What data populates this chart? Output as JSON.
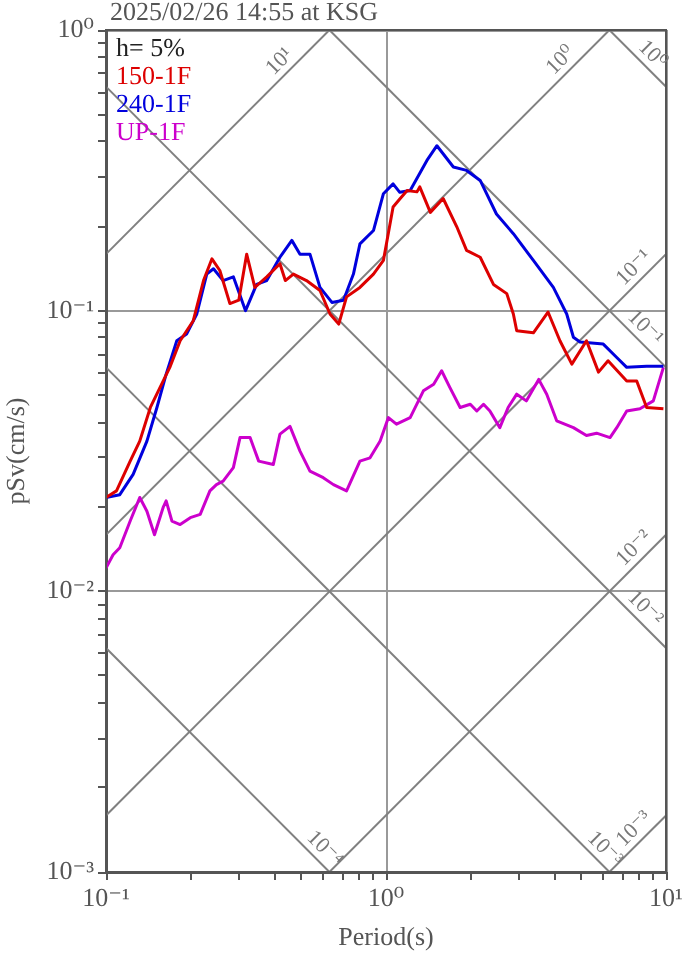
{
  "chart_data": {
    "type": "line",
    "title": "2025/02/26 14:55 at KSG",
    "xlabel": "Period(s)",
    "ylabel": "pSv(cm/s)",
    "legend_title": "h= 5%",
    "legend": "top left",
    "log": "xy",
    "grid": true,
    "xlim": [
      0.1,
      10
    ],
    "ylim": [
      0.001,
      1
    ],
    "xticks": [
      {
        "value": 0.1,
        "label": "10⁻¹"
      },
      {
        "value": 0.2,
        "label": null
      },
      {
        "value": 0.3,
        "label": null
      },
      {
        "value": 0.4,
        "label": null
      },
      {
        "value": 0.5,
        "label": null
      },
      {
        "value": 0.6,
        "label": null
      },
      {
        "value": 0.7,
        "label": null
      },
      {
        "value": 0.8,
        "label": null
      },
      {
        "value": 0.9,
        "label": null
      },
      {
        "value": 1,
        "label": "10⁰"
      },
      {
        "value": 2,
        "label": null
      },
      {
        "value": 3,
        "label": null
      },
      {
        "value": 4,
        "label": null
      },
      {
        "value": 5,
        "label": null
      },
      {
        "value": 6,
        "label": null
      },
      {
        "value": 7,
        "label": null
      },
      {
        "value": 8,
        "label": null
      },
      {
        "value": 9,
        "label": null
      },
      {
        "value": 10,
        "label": "10¹"
      }
    ],
    "yticks": [
      {
        "value": 0.001,
        "label": "10⁻³"
      },
      {
        "value": 0.002,
        "label": null
      },
      {
        "value": 0.003,
        "label": null
      },
      {
        "value": 0.004,
        "label": null
      },
      {
        "value": 0.005,
        "label": null
      },
      {
        "value": 0.006,
        "label": null
      },
      {
        "value": 0.007,
        "label": null
      },
      {
        "value": 0.008,
        "label": null
      },
      {
        "value": 0.009,
        "label": null
      },
      {
        "value": 0.01,
        "label": "10⁻²"
      },
      {
        "value": 0.02,
        "label": null
      },
      {
        "value": 0.03,
        "label": null
      },
      {
        "value": 0.04,
        "label": null
      },
      {
        "value": 0.05,
        "label": null
      },
      {
        "value": 0.06,
        "label": null
      },
      {
        "value": 0.07,
        "label": null
      },
      {
        "value": 0.08,
        "label": null
      },
      {
        "value": 0.09,
        "label": null
      },
      {
        "value": 0.1,
        "label": "10⁻¹"
      },
      {
        "value": 0.2,
        "label": null
      },
      {
        "value": 0.3,
        "label": null
      },
      {
        "value": 0.4,
        "label": null
      },
      {
        "value": 0.5,
        "label": null
      },
      {
        "value": 0.6,
        "label": null
      },
      {
        "value": 0.7,
        "label": null
      },
      {
        "value": 0.8,
        "label": null
      },
      {
        "value": 0.9,
        "label": null
      },
      {
        "value": 1,
        "label": "10⁰"
      }
    ],
    "series": [
      {
        "name": "150-1F",
        "color": "#dd0000",
        "x": [
          0.1,
          0.109,
          0.122,
          0.132,
          0.144,
          0.156,
          0.169,
          0.184,
          0.205,
          0.223,
          0.239,
          0.255,
          0.277,
          0.298,
          0.318,
          0.34,
          0.375,
          0.418,
          0.437,
          0.467,
          0.52,
          0.581,
          0.631,
          0.678,
          0.723,
          0.807,
          0.902,
          0.979,
          1.06,
          1.12,
          1.19,
          1.29,
          1.32,
          1.44,
          1.6,
          1.79,
          1.94,
          2.17,
          2.42,
          2.7,
          2.85,
          2.93,
          3.36,
          3.79,
          4.18,
          4.61,
          5.2,
          5.74,
          6.21,
          7.24,
          7.86,
          8.53,
          9.79
        ],
        "values": [
          0.0216,
          0.0228,
          0.0291,
          0.0343,
          0.0452,
          0.0533,
          0.0628,
          0.0781,
          0.0921,
          0.128,
          0.153,
          0.139,
          0.106,
          0.109,
          0.159,
          0.121,
          0.132,
          0.147,
          0.128,
          0.135,
          0.128,
          0.118,
          0.0973,
          0.0896,
          0.112,
          0.121,
          0.135,
          0.151,
          0.234,
          0.25,
          0.268,
          0.265,
          0.276,
          0.224,
          0.251,
          0.199,
          0.164,
          0.155,
          0.124,
          0.115,
          0.0973,
          0.0848,
          0.0834,
          0.0989,
          0.0781,
          0.0645,
          0.0781,
          0.0604,
          0.0663,
          0.0562,
          0.0562,
          0.0452,
          0.0447
        ]
      },
      {
        "name": "240-1F",
        "color": "#0000dd",
        "x": [
          0.1,
          0.112,
          0.125,
          0.14,
          0.152,
          0.164,
          0.179,
          0.194,
          0.211,
          0.229,
          0.242,
          0.262,
          0.285,
          0.315,
          0.345,
          0.375,
          0.418,
          0.461,
          0.493,
          0.535,
          0.581,
          0.641,
          0.705,
          0.765,
          0.807,
          0.902,
          0.979,
          1.06,
          1.12,
          1.22,
          1.4,
          1.52,
          1.74,
          1.94,
          2.17,
          2.48,
          2.85,
          3.36,
          3.96,
          4.42,
          4.67,
          4.93,
          5.97,
          6.67,
          7.24,
          8.53,
          9.79
        ],
        "values": [
          0.0216,
          0.0221,
          0.0261,
          0.0343,
          0.0452,
          0.0594,
          0.0781,
          0.0826,
          0.0973,
          0.135,
          0.141,
          0.128,
          0.132,
          0.1,
          0.124,
          0.128,
          0.155,
          0.178,
          0.159,
          0.159,
          0.121,
          0.107,
          0.109,
          0.135,
          0.173,
          0.193,
          0.261,
          0.283,
          0.264,
          0.268,
          0.343,
          0.387,
          0.325,
          0.316,
          0.291,
          0.221,
          0.188,
          0.151,
          0.121,
          0.0973,
          0.0804,
          0.0773,
          0.076,
          0.0681,
          0.0628,
          0.0634,
          0.0634
        ]
      },
      {
        "name": "UP-1F",
        "color": "#cc00cc",
        "x": [
          0.1,
          0.106,
          0.112,
          0.122,
          0.132,
          0.14,
          0.149,
          0.16,
          0.164,
          0.172,
          0.184,
          0.2,
          0.217,
          0.235,
          0.248,
          0.262,
          0.285,
          0.301,
          0.327,
          0.351,
          0.396,
          0.418,
          0.454,
          0.493,
          0.535,
          0.597,
          0.649,
          0.723,
          0.807,
          0.877,
          0.953,
          1.02,
          1.09,
          1.22,
          1.36,
          1.48,
          1.58,
          1.69,
          1.84,
          2,
          2.11,
          2.23,
          2.35,
          2.55,
          2.73,
          2.93,
          3.17,
          3.51,
          3.75,
          4.07,
          4.67,
          5.2,
          5.65,
          6.31,
          6.67,
          7.24,
          8.07,
          9.01,
          9.79
        ],
        "values": [
          0.0121,
          0.0135,
          0.0143,
          0.0178,
          0.0216,
          0.0193,
          0.0159,
          0.0199,
          0.021,
          0.0178,
          0.0173,
          0.0183,
          0.0188,
          0.0228,
          0.024,
          0.0247,
          0.0276,
          0.0353,
          0.0353,
          0.0291,
          0.0283,
          0.0363,
          0.0387,
          0.0316,
          0.0268,
          0.0254,
          0.024,
          0.0228,
          0.0291,
          0.0299,
          0.0343,
          0.0416,
          0.0394,
          0.0416,
          0.0518,
          0.0547,
          0.0611,
          0.0533,
          0.0452,
          0.0464,
          0.0439,
          0.0464,
          0.0439,
          0.0383,
          0.0452,
          0.0504,
          0.0477,
          0.0569,
          0.0504,
          0.0405,
          0.0383,
          0.0359,
          0.0366,
          0.0353,
          0.0383,
          0.0439,
          0.0447,
          0.0477,
          0.0628
        ]
      },
      {
        "color": "#808080",
        "x": [
          0.1,
          0.628
        ],
        "values": [
          0.159,
          1
        ]
      },
      {
        "color": "#808080",
        "x": [
          0.1,
          6.28
        ],
        "values": [
          0.0159,
          1
        ]
      },
      {
        "color": "#808080",
        "x": [
          0.1,
          10
        ],
        "values": [
          0.00159,
          0.159
        ]
      },
      {
        "color": "#808080",
        "x": [
          0.628,
          10
        ],
        "values": [
          0.001,
          0.0159
        ]
      },
      {
        "color": "#808080",
        "x": [
          6.28,
          10
        ],
        "values": [
          0.001,
          0.00159
        ]
      },
      {
        "color": "#808080",
        "x": [
          6.28,
          10
        ],
        "values": [
          1,
          0.628
        ]
      },
      {
        "color": "#808080",
        "x": [
          0.628,
          10
        ],
        "values": [
          1,
          0.0628
        ]
      },
      {
        "color": "#808080",
        "x": [
          0.1,
          10
        ],
        "values": [
          0.628,
          0.00628
        ]
      },
      {
        "color": "#808080",
        "x": [
          0.1,
          6.28
        ],
        "values": [
          0.0628,
          0.001
        ]
      },
      {
        "color": "#808080",
        "x": [
          0.1,
          0.628
        ],
        "values": [
          0.00628,
          0.001
        ]
      }
    ],
    "annotations": [
      {
        "text": "10¹",
        "x": 0.45,
        "y": 0.716
      },
      {
        "text": "10⁰",
        "x": 4.54,
        "y": 0.723
      },
      {
        "text": "10⁰",
        "x": 8.3,
        "y": 0.757
      },
      {
        "text": "10⁻¹",
        "x": 8.3,
        "y": 0.132
      },
      {
        "text": "10⁻¹",
        "x": 7.8,
        "y": 0.0806
      },
      {
        "text": "10⁻²",
        "x": 8.3,
        "y": 0.0132
      },
      {
        "text": "10⁻²",
        "x": 7.8,
        "y": 0.00806
      },
      {
        "text": "10⁻³",
        "x": 8.3,
        "y": 0.00132
      },
      {
        "text": "10⁻³",
        "x": 5.6,
        "y": 0.00112
      },
      {
        "text": "10⁻⁴",
        "x": 0.56,
        "y": 0.00112
      }
    ]
  }
}
